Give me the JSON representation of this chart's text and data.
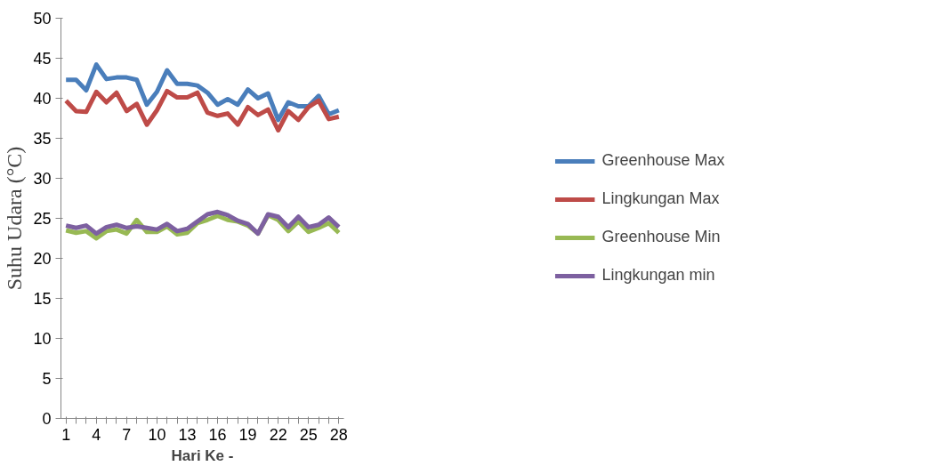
{
  "chart_data": {
    "type": "line",
    "xlabel": "Hari Ke -",
    "ylabel": "Suhu Udara (°C)",
    "categories": [
      "1",
      null,
      null,
      "4",
      null,
      null,
      "7",
      null,
      null,
      "10",
      null,
      null,
      "13",
      null,
      null,
      "16",
      null,
      null,
      "19",
      null,
      null,
      "22",
      null,
      null,
      "25",
      null,
      null,
      "28"
    ],
    "ylim": [
      0,
      50
    ],
    "yticks": [
      0,
      5,
      10,
      15,
      20,
      25,
      30,
      35,
      40,
      45,
      50
    ],
    "grid": false,
    "legend": "right",
    "marker": "none",
    "line_style": "solid",
    "series": [
      {
        "name": "Greenhouse Max",
        "color": "#4a7ebb",
        "values": [
          42.3,
          42.3,
          41.0,
          44.2,
          42.4,
          42.6,
          42.6,
          42.3,
          39.2,
          40.8,
          43.5,
          41.8,
          41.8,
          41.6,
          40.7,
          39.2,
          39.9,
          39.2,
          41.1,
          40.0,
          40.6,
          37.3,
          39.5,
          39.0,
          39.0,
          40.3,
          38.0,
          38.5
        ]
      },
      {
        "name": "Lingkungan Max",
        "color": "#be4b48",
        "values": [
          39.7,
          38.4,
          38.3,
          40.8,
          39.5,
          40.7,
          38.4,
          39.3,
          36.7,
          38.5,
          40.9,
          40.1,
          40.1,
          40.7,
          38.2,
          37.8,
          38.1,
          36.7,
          38.9,
          37.9,
          38.6,
          36.0,
          38.4,
          37.3,
          38.9,
          39.7,
          37.4,
          37.7
        ]
      },
      {
        "name": "Greenhouse Min",
        "color": "#98b954",
        "values": [
          23.5,
          23.2,
          23.4,
          22.5,
          23.4,
          23.6,
          23.1,
          24.8,
          23.3,
          23.3,
          24.0,
          23.0,
          23.2,
          24.4,
          24.8,
          25.3,
          24.8,
          24.6,
          24.1,
          23.1,
          25.4,
          24.8,
          23.4,
          24.6,
          23.3,
          23.8,
          24.4,
          23.2
        ]
      },
      {
        "name": "Lingkungan min",
        "color": "#7d60a0",
        "values": [
          24.1,
          23.8,
          24.1,
          23.1,
          23.9,
          24.2,
          23.8,
          24.0,
          23.8,
          23.6,
          24.3,
          23.4,
          23.7,
          24.6,
          25.5,
          25.8,
          25.4,
          24.7,
          24.3,
          23.1,
          25.5,
          25.2,
          23.9,
          25.2,
          23.9,
          24.2,
          25.1,
          23.9
        ]
      }
    ]
  }
}
